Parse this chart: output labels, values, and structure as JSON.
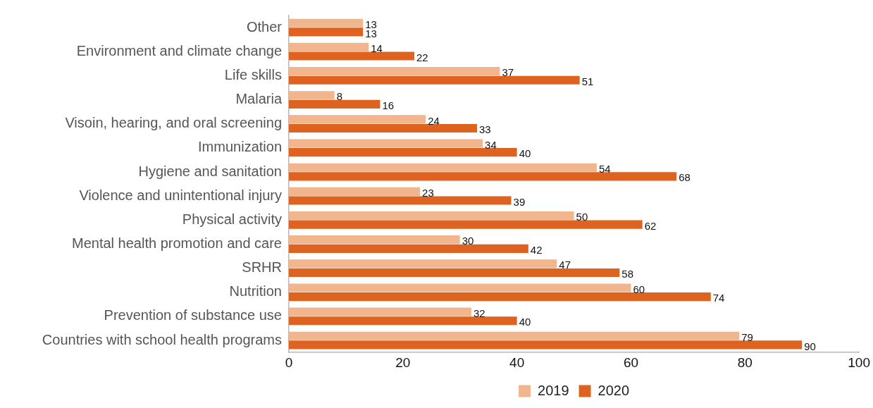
{
  "chart_data": {
    "type": "bar",
    "orientation": "horizontal",
    "categories": [
      "Other",
      "Environment and climate change",
      "Life skills",
      "Malaria",
      "Visoin, hearing, and oral screening",
      "Immunization",
      "Hygiene and sanitation",
      "Violence and unintentional injury",
      "Physical activity",
      "Mental health promotion and care",
      "SRHR",
      "Nutrition",
      "Prevention of substance use",
      "Countries with school health programs"
    ],
    "series": [
      {
        "name": "2019",
        "color": "#f2b68e",
        "values": [
          13,
          14,
          37,
          8,
          24,
          34,
          54,
          23,
          50,
          30,
          47,
          60,
          32,
          79
        ]
      },
      {
        "name": "2020",
        "color": "#de6220",
        "values": [
          13,
          22,
          51,
          16,
          33,
          40,
          68,
          39,
          62,
          42,
          58,
          74,
          40,
          90
        ]
      }
    ],
    "xlim": [
      0,
      100
    ],
    "xticks": [
      0,
      20,
      40,
      60,
      80,
      100
    ],
    "data_labels": true,
    "legend": "bottom",
    "grid": false
  }
}
